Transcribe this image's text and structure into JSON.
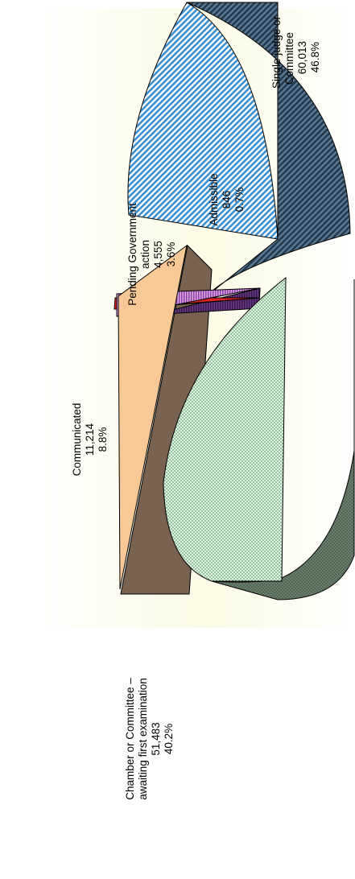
{
  "chart_data": {
    "type": "pie",
    "title": "",
    "style": "3d-exploded",
    "orientation": "rotated-90-ccw",
    "slices": [
      {
        "name": "Single judge or Committee",
        "lines": [
          "Single judge or",
          "Committee",
          "60,013",
          "46.8%"
        ],
        "value": 60013,
        "percent": 46.8,
        "color": "#3b8fd0",
        "side_color": "#2d4b63",
        "pattern": "diagonal-stripes"
      },
      {
        "name": "Admissible",
        "lines": [
          "Admissible",
          "846",
          "0.7%"
        ],
        "value": 846,
        "percent": 0.7,
        "color": "#e02020",
        "side_color": "#5a1010",
        "pattern": "solid"
      },
      {
        "name": "Pending Government action",
        "lines": [
          "Pending Government",
          "action",
          "4,555",
          "3.6%"
        ],
        "value": 4555,
        "percent": 3.6,
        "color": "#a050b0",
        "side_color": "#4a2260",
        "pattern": "vertical-stripes"
      },
      {
        "name": "Communicated",
        "lines": [
          "Communicated",
          "11,214",
          "8.8%"
        ],
        "value": 11214,
        "percent": 8.8,
        "color": "#f8c896",
        "side_color": "#7a6250",
        "pattern": "solid"
      },
      {
        "name": "Chamber or Committee – awaiting first examination",
        "lines": [
          "Chamber or Committee –",
          "awaiting first examination",
          "51,483",
          "40.2%"
        ],
        "value": 51483,
        "percent": 40.2,
        "color": "#3c9a5a",
        "side_color": "#566b5a",
        "pattern": "dots"
      }
    ]
  }
}
